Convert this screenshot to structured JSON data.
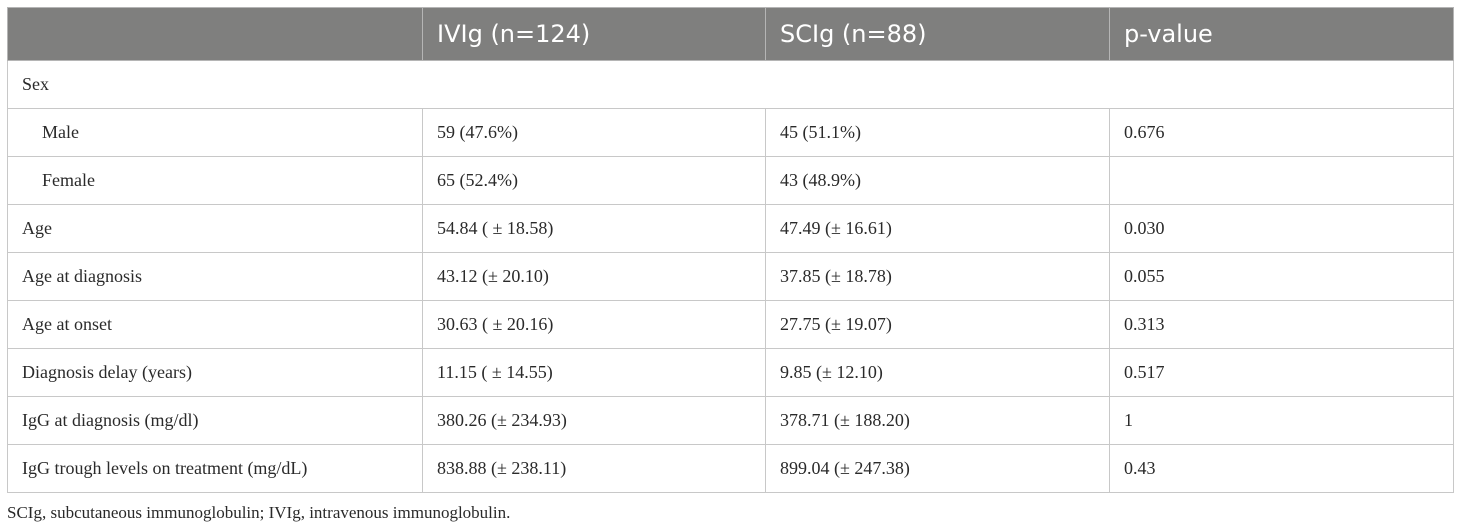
{
  "chart_data": {
    "type": "table",
    "columns": [
      "",
      "IVIg (n=124)",
      "SCIg (n=88)",
      "p-value"
    ],
    "rows": [
      {
        "label": "Sex",
        "span": true,
        "cells": []
      },
      {
        "label": "Male",
        "indent": true,
        "cells": [
          "59 (47.6%)",
          "45 (51.1%)",
          "0.676"
        ]
      },
      {
        "label": "Female",
        "indent": true,
        "cells": [
          "65 (52.4%)",
          "43 (48.9%)",
          ""
        ]
      },
      {
        "label": "Age",
        "cells": [
          "54.84 ( ± 18.58)",
          "47.49 (± 16.61)",
          "0.030"
        ]
      },
      {
        "label": "Age at diagnosis",
        "cells": [
          "43.12 (± 20.10)",
          "37.85 (± 18.78)",
          "0.055"
        ]
      },
      {
        "label": "Age at onset",
        "cells": [
          "30.63 ( ± 20.16)",
          "27.75 (± 19.07)",
          "0.313"
        ]
      },
      {
        "label": "Diagnosis delay (years)",
        "cells": [
          "11.15 ( ± 14.55)",
          "9.85 (± 12.10)",
          "0.517"
        ]
      },
      {
        "label": "IgG at diagnosis (mg/dl)",
        "cells": [
          "380.26 (± 234.93)",
          "378.71 (± 188.20)",
          "1"
        ]
      },
      {
        "label": "IgG trough levels on treatment (mg/dL)",
        "cells": [
          "838.88 (± 238.11)",
          "899.04 (± 247.38)",
          "0.43"
        ]
      }
    ]
  },
  "footnote": "SCIg, subcutaneous immunoglobulin; IVIg, intravenous immunoglobulin.",
  "colors": {
    "header_bg": "#7f7f7e",
    "header_text": "#ffffff",
    "border": "#c8c8c8"
  }
}
